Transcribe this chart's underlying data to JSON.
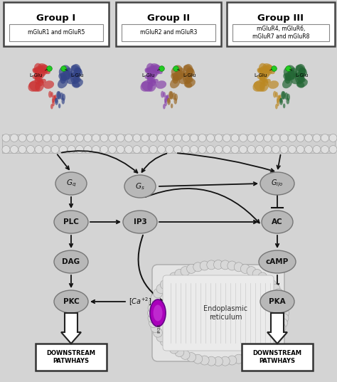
{
  "bg_color": "#d4d4d4",
  "panel_bg": "#e0e0e0",
  "groups": [
    {
      "name": "Group I",
      "subtitle": "mGluR1 and mGluR5"
    },
    {
      "name": "Group II",
      "subtitle": "mGluR2 and mGluR3"
    },
    {
      "name": "Group III",
      "subtitle": "mGluR4, mGluR6,\nmGluR7 and mGluR8"
    }
  ],
  "receptor_colors": [
    [
      "#cc3333",
      "#334488"
    ],
    [
      "#8844aa",
      "#996622"
    ],
    [
      "#bb8822",
      "#226633"
    ]
  ],
  "node_fill": "#b8b8b8",
  "node_edge": "#777777",
  "membrane_fill": "#d0d0d0",
  "membrane_circle": "#e0e0e0",
  "er_fill": "#e4e4e4",
  "er_circle": "#d8d8d8",
  "ip3r_color": "#aa00bb",
  "ip3r_dark": "#660088",
  "arrow_color": "#111111",
  "downstream_fill": "#ffffff",
  "downstream_edge": "#333333"
}
